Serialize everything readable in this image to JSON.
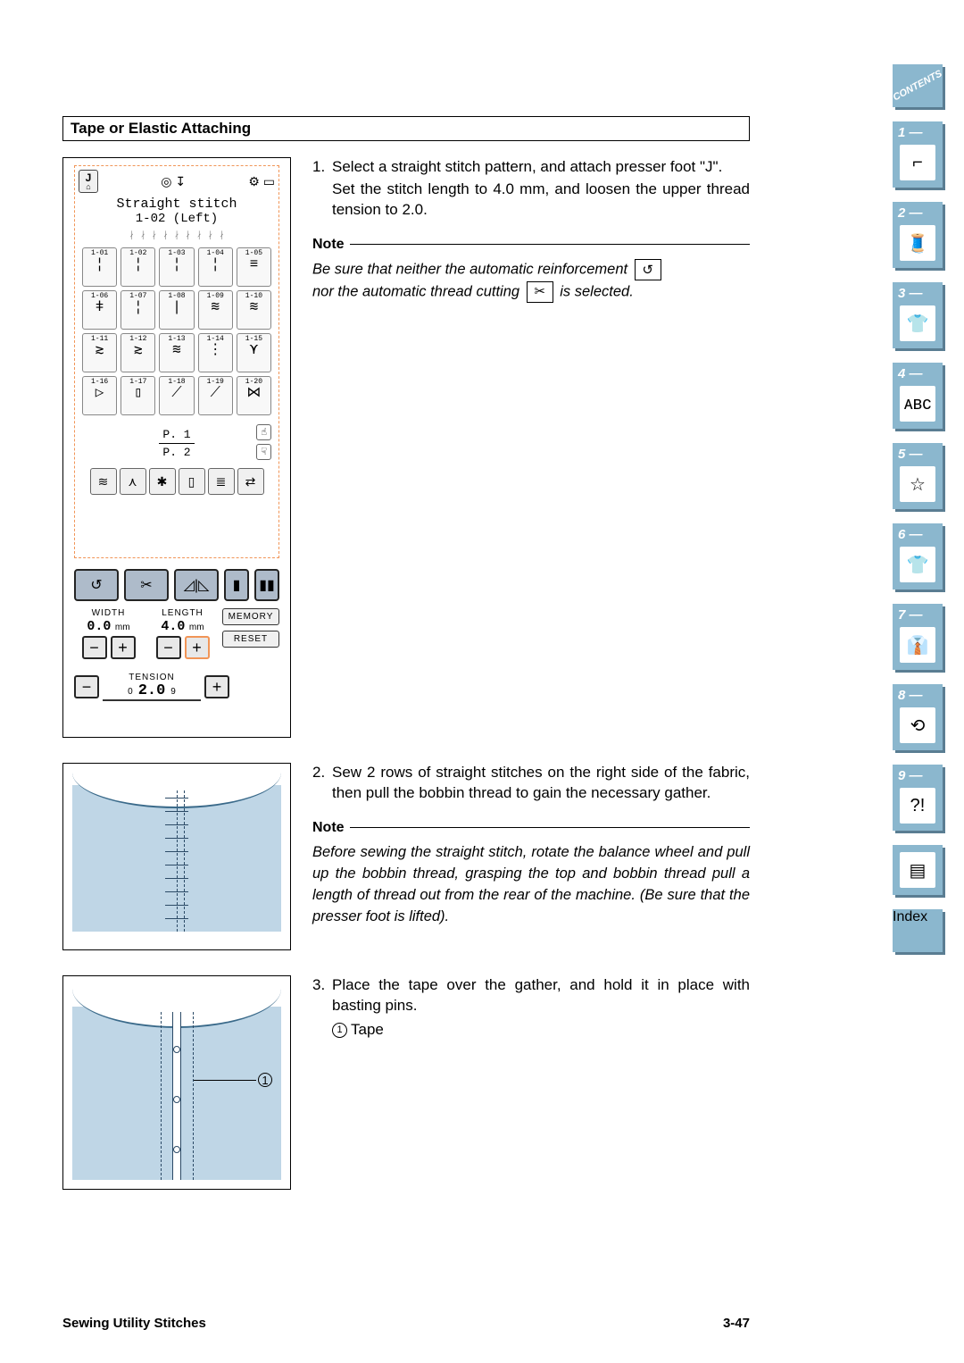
{
  "section_title": "Tape or Elastic Attaching",
  "footer": {
    "left": "Sewing Utility Stitches",
    "right": "3-47"
  },
  "lcd": {
    "foot_label": "J",
    "title": "Straight stitch",
    "pattern_sub": "1-02  (Left)",
    "grid": [
      "1-01",
      "1-02",
      "1-03",
      "1-04",
      "1-05",
      "1-06",
      "1-07",
      "1-08",
      "1-09",
      "1-10",
      "1-11",
      "1-12",
      "1-13",
      "1-14",
      "1-15",
      "1-16",
      "1-17",
      "1-18",
      "1-19",
      "1-20"
    ],
    "glyphs": [
      "¦",
      "¦",
      "¦",
      "¦",
      "≡",
      "ǂ",
      "¦",
      "|",
      "≋",
      "≋",
      "≳",
      "≳",
      "≋",
      "⋮",
      "⋎",
      "▷",
      "▯",
      "⟋",
      "⟋",
      "⋈"
    ],
    "page_top": "P. 1",
    "page_bot": "P. 2",
    "width_label": "WIDTH",
    "width_value": "0.0",
    "width_unit": "mm",
    "length_label": "LENGTH",
    "length_value": "4.0",
    "length_unit": "mm",
    "memory_label": "MEMORY",
    "reset_label": "RESET",
    "tension_label": "TENSION",
    "tension_value": "2.0",
    "tension_min": "0",
    "tension_max": "9",
    "colors": {
      "panel_bg": "#aebbca",
      "dash_border": "#f19557"
    }
  },
  "step1": {
    "n": "1.",
    "text_a": "Select a straight stitch pattern, and attach presser foot \"J\".",
    "text_b": "Set the stitch length to 4.0 mm, and loosen the upper thread tension to 2.0."
  },
  "note1": {
    "head": "Note",
    "line_a": "Be sure that neither the automatic reinforcement",
    "line_b_pre": "nor the automatic thread cutting",
    "line_b_post": "is selected.",
    "icon_reinforce": "↺",
    "icon_scissor": "✂"
  },
  "step2": {
    "n": "2.",
    "text": "Sew 2 rows of straight stitches on the right side of the fabric, then pull the bobbin thread to gain the necessary gather."
  },
  "note2": {
    "head": "Note",
    "text": "Before sewing the straight stitch, rotate the balance wheel and pull up the bobbin thread, grasping the top and bobbin thread pull a length of thread out from the rear of the machine. (Be sure that the presser foot is lifted)."
  },
  "step3": {
    "n": "3.",
    "text": "Place the tape over the gather, and hold it in place with basting pins.",
    "call_n": "1",
    "call_label": "Tape"
  },
  "diagram_colors": {
    "fabric": "#bfd6e6",
    "stroke": "#2b4a66",
    "edge": "#3a6a8a"
  },
  "sidebar": {
    "contents": "CONTENTS",
    "index": "Index",
    "tabs": [
      {
        "n": "1 —",
        "glyph": "⌐"
      },
      {
        "n": "2 —",
        "glyph": "🧵"
      },
      {
        "n": "3 —",
        "glyph": "👕"
      },
      {
        "n": "4 —",
        "glyph": "ᴀʙᴄ"
      },
      {
        "n": "5 —",
        "glyph": "☆"
      },
      {
        "n": "6 —",
        "glyph": "👕"
      },
      {
        "n": "7 —",
        "glyph": "👔"
      },
      {
        "n": "8 —",
        "glyph": "⟲"
      },
      {
        "n": "9 —",
        "glyph": "?!"
      }
    ],
    "plain_glyph": "▤",
    "tab_bg": "#8bb7ce",
    "tab_shadow": "#5a7d92"
  }
}
